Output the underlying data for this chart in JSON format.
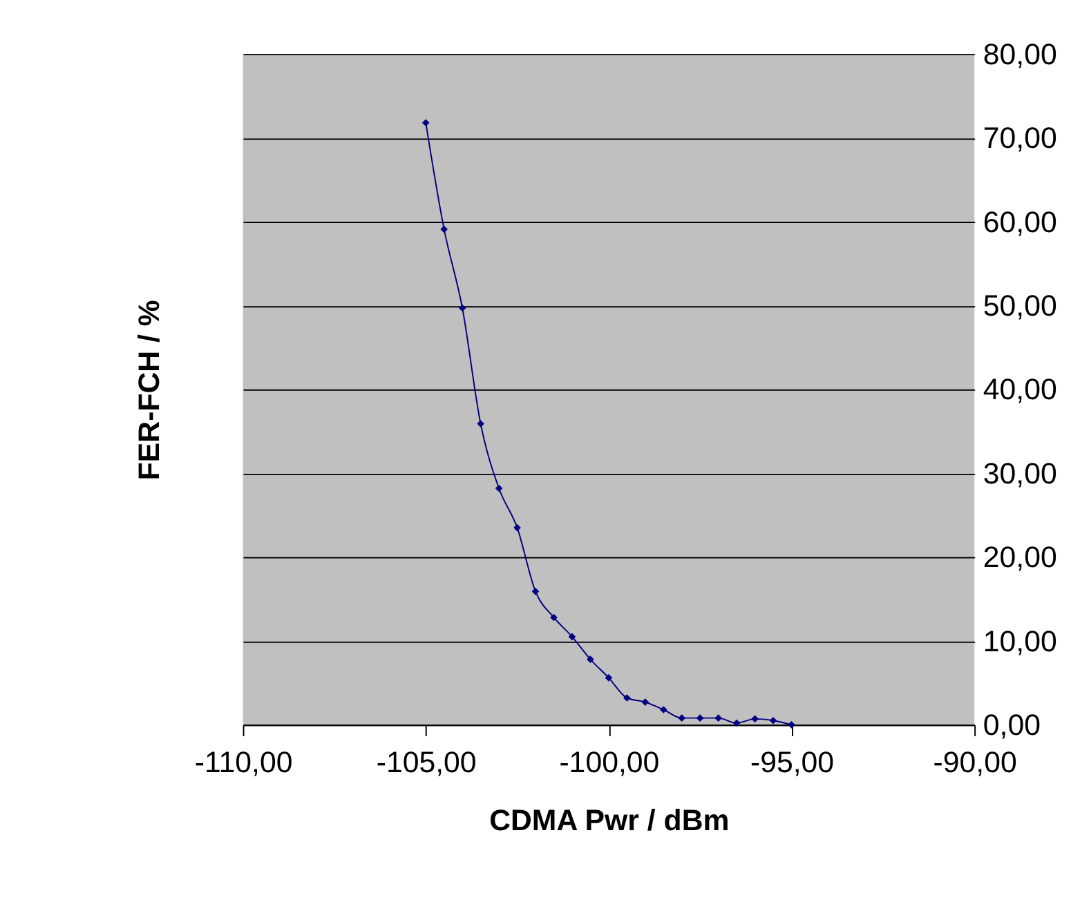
{
  "chart_data": {
    "type": "line",
    "xlabel": "CDMA Pwr / dBm",
    "ylabel": "FER-FCH / %",
    "x": [
      -105,
      -104.5,
      -104,
      -103.5,
      -103,
      -102.5,
      -102,
      -101.5,
      -101,
      -100.5,
      -100,
      -99.5,
      -99,
      -98.5,
      -98,
      -97.5,
      -97,
      -96.5,
      -96,
      -95.5,
      -95
    ],
    "series": [
      {
        "color": "#000080",
        "values": [
          71.8,
          59.1,
          49.7,
          35.9,
          28.2,
          23.5,
          15.9,
          12.8,
          10.5,
          7.8,
          5.6,
          3.2,
          2.7,
          1.8,
          0.8,
          0.8,
          0.8,
          0.2,
          0.7,
          0.5,
          0.0
        ]
      }
    ],
    "xlim": [
      -110,
      -90
    ],
    "xticks": [
      {
        "value": -110,
        "label": "-110,00"
      },
      {
        "value": -105,
        "label": "-105,00"
      },
      {
        "value": -100,
        "label": "-100,00"
      },
      {
        "value": -95,
        "label": "-95,00"
      },
      {
        "value": -90,
        "label": "-90,00"
      }
    ],
    "ylim": [
      0,
      80
    ],
    "yticks": [
      {
        "value": 0,
        "label": "0,00"
      },
      {
        "value": 10,
        "label": "10,00"
      },
      {
        "value": 20,
        "label": "20,00"
      },
      {
        "value": 30,
        "label": "30,00"
      },
      {
        "value": 40,
        "label": "40,00"
      },
      {
        "value": 50,
        "label": "50,00"
      },
      {
        "value": 60,
        "label": "60,00"
      },
      {
        "value": 70,
        "label": "70,00"
      },
      {
        "value": 80,
        "label": "80,00"
      }
    ],
    "grid": "y",
    "marker": "diamond",
    "line_style": "solid"
  }
}
